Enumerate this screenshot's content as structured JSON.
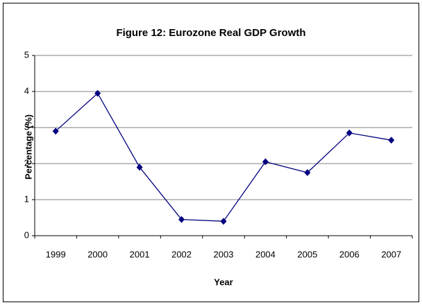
{
  "chart_data": {
    "type": "line",
    "title": "Figure 12: Eurozone Real GDP Growth",
    "x_label": "Year",
    "y_label": "Percentage (%)",
    "categories": [
      "1999",
      "2000",
      "2001",
      "2002",
      "2003",
      "2004",
      "2005",
      "2006",
      "2007"
    ],
    "series": [
      {
        "name": "Real GDP Growth",
        "color": "#000080",
        "values": [
          2.9,
          3.95,
          1.9,
          0.45,
          0.4,
          2.05,
          1.75,
          2.85,
          2.65
        ]
      }
    ],
    "ylim": [
      0,
      5
    ],
    "yticks": [
      0,
      1,
      2,
      3,
      4,
      5
    ],
    "grid": true
  }
}
